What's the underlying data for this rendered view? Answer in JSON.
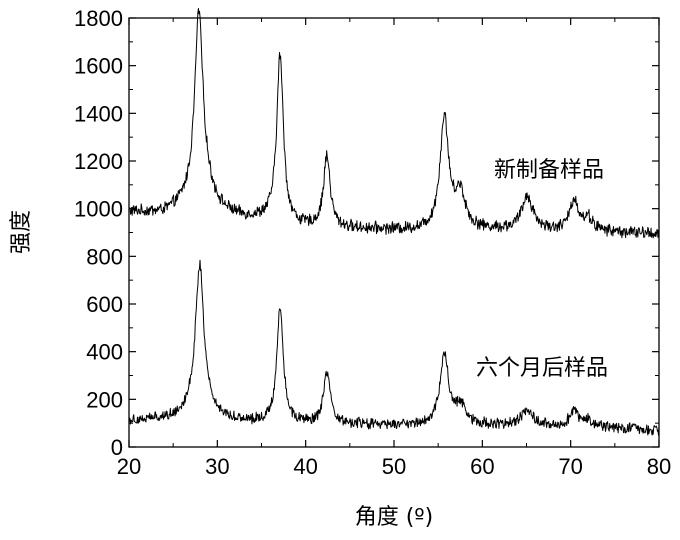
{
  "chart_data": {
    "type": "line",
    "xlabel": "角度 (º)",
    "ylabel": "强度",
    "xlim": [
      20,
      80
    ],
    "ylim": [
      0,
      1800
    ],
    "xticks": [
      20,
      30,
      40,
      50,
      60,
      70,
      80
    ],
    "yticks": [
      0,
      200,
      400,
      600,
      800,
      1000,
      1200,
      1400,
      1600,
      1800
    ],
    "grid": false,
    "annotations": [
      {
        "text": "新制备样品",
        "x": 59,
        "y": 1160
      },
      {
        "text": "六个月后样品",
        "x": 57,
        "y": 340
      }
    ],
    "series": [
      {
        "name": "新制备样品",
        "color": "#000000",
        "baseline": [
          [
            20,
            985
          ],
          [
            24,
            975
          ],
          [
            26,
            990
          ],
          [
            29,
            975
          ],
          [
            33,
            955
          ],
          [
            36,
            950
          ],
          [
            38,
            930
          ],
          [
            40,
            920
          ],
          [
            45,
            915
          ],
          [
            50,
            910
          ],
          [
            54,
            905
          ],
          [
            57,
            905
          ],
          [
            60,
            910
          ],
          [
            63,
            910
          ],
          [
            66,
            910
          ],
          [
            69,
            905
          ],
          [
            72,
            905
          ],
          [
            76,
            900
          ],
          [
            80,
            895
          ]
        ],
        "noise": 22,
        "peaks": [
          {
            "x": 27.9,
            "height": 740,
            "width": 0.55
          },
          {
            "x": 28.3,
            "height": 120,
            "width": 1.4
          },
          {
            "x": 37.1,
            "height": 700,
            "width": 0.45
          },
          {
            "x": 42.4,
            "height": 300,
            "width": 0.45
          },
          {
            "x": 55.7,
            "height": 470,
            "width": 0.6
          },
          {
            "x": 57.5,
            "height": 150,
            "width": 0.7
          },
          {
            "x": 65.1,
            "height": 140,
            "width": 0.75
          },
          {
            "x": 70.4,
            "height": 130,
            "width": 0.6
          },
          {
            "x": 72.0,
            "height": 50,
            "width": 0.6
          }
        ]
      },
      {
        "name": "六个月后样品",
        "color": "#000000",
        "baseline": [
          [
            20,
            110
          ],
          [
            25,
            115
          ],
          [
            27,
            125
          ],
          [
            30,
            110
          ],
          [
            35,
            100
          ],
          [
            40,
            95
          ],
          [
            45,
            95
          ],
          [
            50,
            90
          ],
          [
            55,
            90
          ],
          [
            60,
            90
          ],
          [
            65,
            90
          ],
          [
            70,
            85
          ],
          [
            75,
            80
          ],
          [
            80,
            70
          ]
        ],
        "noise": 20,
        "peaks": [
          {
            "x": 28.0,
            "height": 590,
            "width": 0.55
          },
          {
            "x": 28.2,
            "height": 60,
            "width": 1.5
          },
          {
            "x": 37.1,
            "height": 480,
            "width": 0.45
          },
          {
            "x": 42.4,
            "height": 210,
            "width": 0.45
          },
          {
            "x": 55.7,
            "height": 290,
            "width": 0.6
          },
          {
            "x": 57.6,
            "height": 80,
            "width": 0.7
          },
          {
            "x": 65.1,
            "height": 70,
            "width": 0.7
          },
          {
            "x": 70.4,
            "height": 65,
            "width": 0.6
          },
          {
            "x": 72.0,
            "height": 30,
            "width": 0.6
          }
        ]
      }
    ]
  }
}
